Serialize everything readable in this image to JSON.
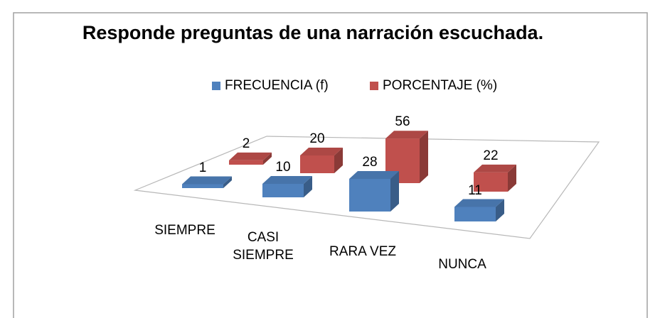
{
  "chart_data": {
    "type": "bar3d",
    "title": "Responde preguntas de una narración escuchada.",
    "categories": [
      "SIEMPRE",
      "CASI SIEMPRE",
      "RARA VEZ",
      "NUNCA"
    ],
    "series": [
      {
        "name": "FRECUENCIA (f)",
        "color": "#4f81bd",
        "values": [
          1,
          10,
          28,
          11
        ]
      },
      {
        "name": "PORCENTAJE (%)",
        "color": "#c0504d",
        "values": [
          2,
          20,
          56,
          22
        ]
      }
    ],
    "legend": "top"
  }
}
